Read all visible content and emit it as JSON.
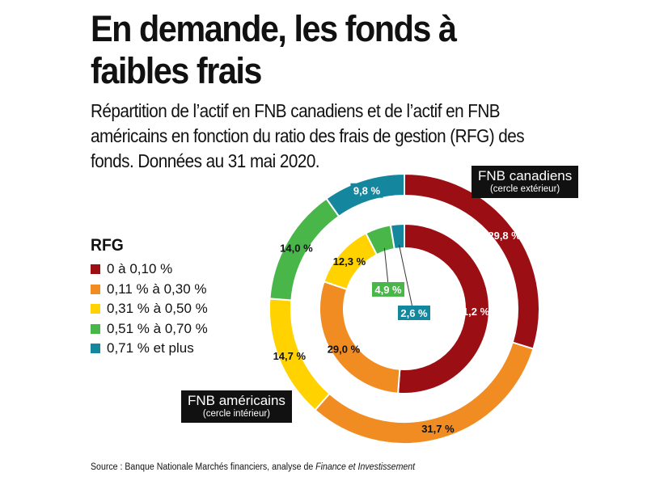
{
  "title": "En demande, les fonds à faibles frais",
  "subtitle": "Répartition de l’actif en FNB canadiens et de l’actif en FNB américains en fonction du ratio des frais de gestion (RFG) des fonds. Données au 31 mai 2020.",
  "legend": {
    "title": "RFG",
    "items": [
      {
        "label": "0 à 0,10 %",
        "color": "#9b0f14"
      },
      {
        "label": "0,11 % à 0,30 %",
        "color": "#f18c22"
      },
      {
        "label": "0,31 % à 0,50 %",
        "color": "#ffd200"
      },
      {
        "label": "0,51 % à 0,70 %",
        "color": "#48b648"
      },
      {
        "label": "0,71 % et plus",
        "color": "#14879e"
      }
    ]
  },
  "outer_tag": {
    "main": "FNB canadiens",
    "sub": "(cercle extérieur)"
  },
  "inner_tag": {
    "main": "FNB américains",
    "sub": "(cercle intérieur)"
  },
  "source": {
    "prefix": "Source : Banque Nationale Marchés financiers, analyse de ",
    "italic": "Finance et Investissement"
  },
  "chart_data": {
    "type": "pie",
    "style": "nested donut",
    "categories": [
      "0 à 0,10 %",
      "0,11 % à 0,30 %",
      "0,31 % à 0,50 %",
      "0,51 % à 0,70 %",
      "0,71 % et plus"
    ],
    "colors": [
      "#9b0f14",
      "#f18c22",
      "#ffd200",
      "#48b648",
      "#14879e"
    ],
    "series": [
      {
        "name": "FNB canadiens",
        "ring": "outer",
        "values": [
          29.8,
          31.7,
          14.7,
          14.0,
          9.8
        ],
        "labels": [
          "29,8 %",
          "31,7 %",
          "14,7 %",
          "14,0 %",
          "9,8 %"
        ]
      },
      {
        "name": "FNB américains",
        "ring": "inner",
        "values": [
          51.2,
          29.0,
          12.3,
          4.9,
          2.6
        ],
        "labels": [
          "51,2 %",
          "29,0 %",
          "12,3 %",
          "4,9 %",
          "2,6 %"
        ]
      }
    ],
    "legend_position": "left"
  }
}
